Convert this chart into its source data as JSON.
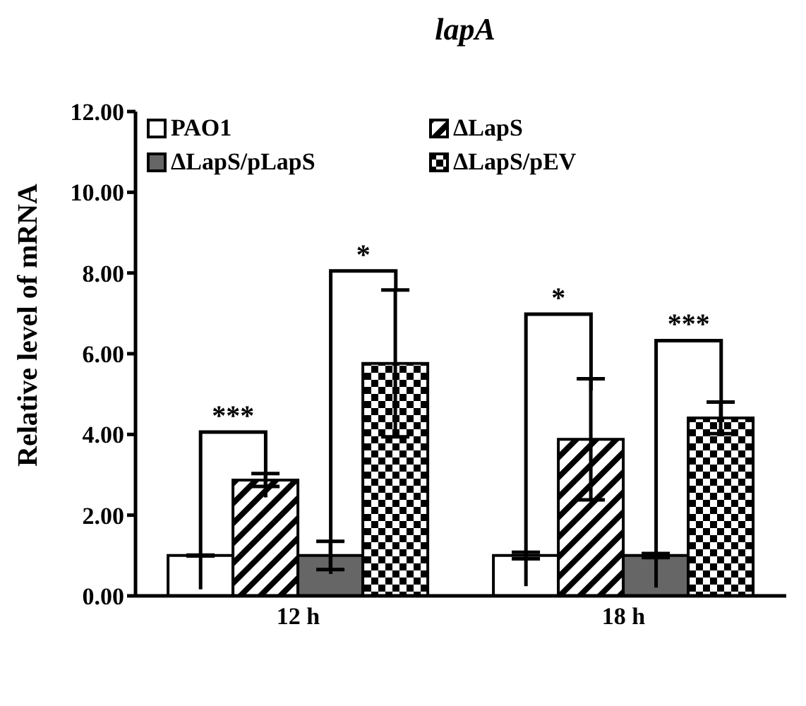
{
  "chart_data": {
    "type": "bar",
    "title": "lapA",
    "ylabel": "Relative level of mRNA",
    "categories": [
      "12 h",
      "18 h"
    ],
    "series": [
      {
        "name": "PAO1",
        "color": "#ffffff",
        "values": [
          1.0,
          1.0
        ],
        "errors": [
          0.01,
          0.08
        ]
      },
      {
        "name": "ΔLapS",
        "color": "#000000",
        "values": [
          2.87,
          3.88
        ],
        "errors": [
          0.16,
          1.5
        ]
      },
      {
        "name": "ΔLapS/pLapS",
        "color": "#666666",
        "values": [
          1.0,
          1.0
        ],
        "errors": [
          0.35,
          0.05
        ]
      },
      {
        "name": "ΔLapS/pEV",
        "color": "#000000",
        "values": [
          5.76,
          4.41
        ],
        "errors": [
          1.82,
          0.39
        ]
      }
    ],
    "ylim": [
      0,
      12
    ],
    "yticks": [
      {
        "value": 0,
        "label": "0.00"
      },
      {
        "value": 2,
        "label": "2.00"
      },
      {
        "value": 4,
        "label": "4.00"
      },
      {
        "value": 6,
        "label": "6.00"
      },
      {
        "value": 8,
        "label": "8.00"
      },
      {
        "value": 10,
        "label": "10.00"
      },
      {
        "value": 12,
        "label": "12.00"
      }
    ],
    "legend": "top",
    "grid": false,
    "annotations": [
      "***",
      "*",
      "*",
      "***"
    ]
  }
}
